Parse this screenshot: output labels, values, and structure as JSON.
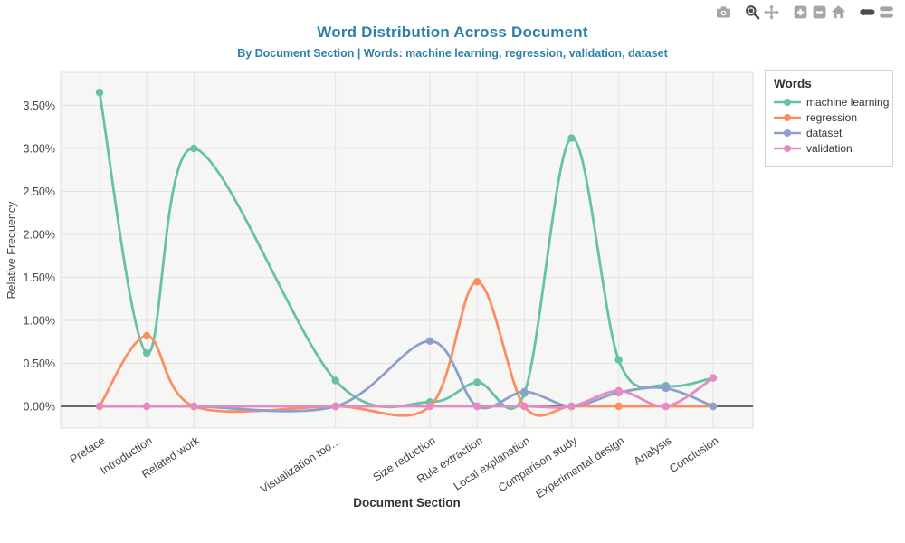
{
  "header": {
    "title": "Word Distribution Across Document",
    "subtitle": "By Document Section | Words: machine learning, regression, validation, dataset",
    "title_color": "#2b7fab"
  },
  "modebar": {
    "groups": [
      [
        {
          "name": "camera",
          "active": false
        }
      ],
      [
        {
          "name": "zoom",
          "active": true
        },
        {
          "name": "pan",
          "active": false
        }
      ],
      [
        {
          "name": "zoom-in",
          "active": false
        },
        {
          "name": "zoom-out",
          "active": false
        },
        {
          "name": "home",
          "active": false
        }
      ],
      [
        {
          "name": "hover-closest",
          "active": true
        },
        {
          "name": "hover-compare",
          "active": false
        }
      ]
    ],
    "color_idle": "#a5a5a5",
    "color_active": "#4d4d4d"
  },
  "legend": {
    "title": "Words",
    "items": [
      {
        "label": "machine learning",
        "color": "#66c2a5"
      },
      {
        "label": "regression",
        "color": "#fc8d62"
      },
      {
        "label": "dataset",
        "color": "#8da0cb"
      },
      {
        "label": "validation",
        "color": "#e78ac3"
      }
    ]
  },
  "chart_data": {
    "type": "line",
    "title": "Word Distribution Across Document",
    "subtitle": "By Document Section | Words: machine learning, regression, validation, dataset",
    "xlabel": "Document Section",
    "ylabel": "Relative Frequency",
    "categories": [
      "Preface",
      "Introduction",
      "Related work",
      "Visualization too…",
      "Size reduction",
      "Rule extraction",
      "Local explanation",
      "Comparison study",
      "Experimental design",
      "Analysis",
      "Conclusion"
    ],
    "x_positions": [
      0,
      1,
      2,
      5,
      7,
      8,
      9,
      10,
      11,
      12,
      13
    ],
    "series": [
      {
        "name": "machine learning",
        "color": "#66c2a5",
        "values": [
          3.65,
          0.62,
          3.0,
          0.3,
          0.05,
          0.28,
          0.15,
          3.12,
          0.54,
          0.24,
          0.33
        ]
      },
      {
        "name": "regression",
        "color": "#fc8d62",
        "values": [
          0,
          0.82,
          0,
          0,
          0,
          1.45,
          0,
          0,
          0,
          0,
          0
        ]
      },
      {
        "name": "dataset",
        "color": "#8da0cb",
        "values": [
          0,
          0,
          0,
          0,
          0.76,
          0,
          0.17,
          0,
          0.16,
          0.21,
          0
        ]
      },
      {
        "name": "validation",
        "color": "#e78ac3",
        "values": [
          0,
          0,
          0,
          0,
          0,
          0,
          0,
          0,
          0.18,
          0,
          0.33
        ]
      }
    ],
    "yticks": [
      {
        "label": "0.00%",
        "value": 0.0
      },
      {
        "label": "0.50%",
        "value": 0.5
      },
      {
        "label": "1.00%",
        "value": 1.0
      },
      {
        "label": "1.50%",
        "value": 1.5
      },
      {
        "label": "2.00%",
        "value": 2.0
      },
      {
        "label": "2.50%",
        "value": 2.5
      },
      {
        "label": "3.00%",
        "value": 3.0
      },
      {
        "label": "3.50%",
        "value": 3.5
      }
    ],
    "ylim": [
      -0.25,
      3.88
    ],
    "xlim": [
      -0.82,
      13.85
    ],
    "grid": true,
    "line_shape": "spline",
    "legend_position": "right",
    "colors": {
      "plot_bg": "#f6f6f4",
      "grid": "#e3e3e3",
      "plot_border": "#dcdcdc",
      "zero_line": "#3a3a3a",
      "tick_text": "#444444",
      "axis_title_text": "#333333"
    }
  }
}
